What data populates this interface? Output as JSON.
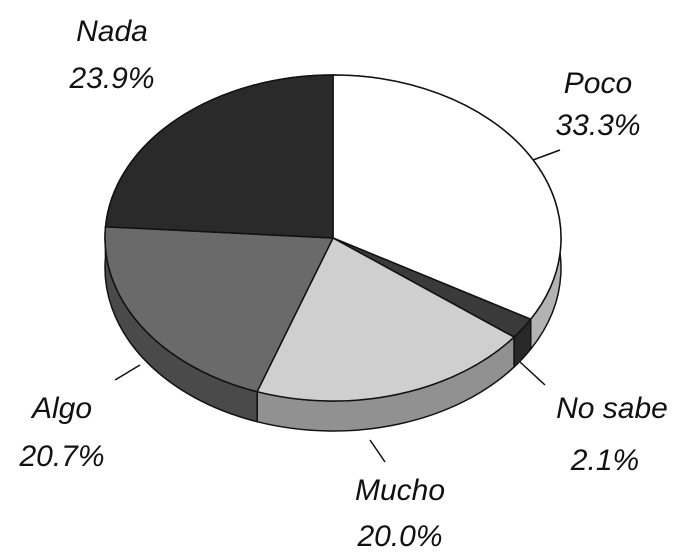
{
  "chart_data": {
    "type": "pie",
    "categories": [
      "Poco",
      "No sabe",
      "Mucho",
      "Algo",
      "Nada"
    ],
    "values": [
      33.3,
      2.1,
      20.0,
      20.7,
      23.9
    ],
    "value_labels": [
      "33.3%",
      "2.1%",
      "20.0%",
      "20.7%",
      "23.9%"
    ],
    "colors": [
      "#ffffff",
      "#3a3a3a",
      "#cfcfcf",
      "#6a6a6a",
      "#2a2a2a"
    ]
  }
}
